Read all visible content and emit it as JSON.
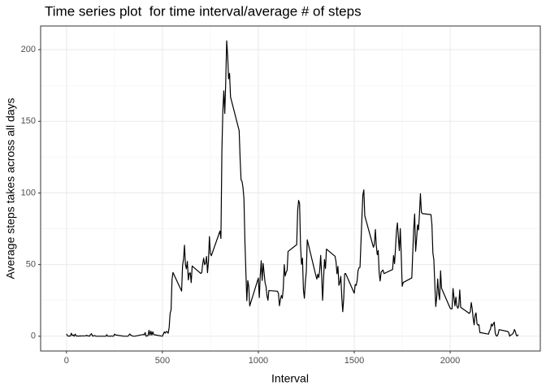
{
  "chart_data": {
    "type": "line",
    "title": "Time series plot  for time interval/average # of steps",
    "x_label": "Interval",
    "y_label": "Average steps takes across all days",
    "x": [
      0,
      5,
      10,
      15,
      20,
      25,
      30,
      35,
      40,
      45,
      50,
      55,
      100,
      105,
      110,
      115,
      120,
      125,
      130,
      135,
      140,
      145,
      150,
      155,
      200,
      205,
      210,
      215,
      220,
      225,
      230,
      235,
      240,
      245,
      250,
      255,
      300,
      310,
      320,
      330,
      335,
      340,
      345,
      350,
      355,
      400,
      405,
      410,
      415,
      420,
      425,
      430,
      435,
      440,
      445,
      450,
      455,
      500,
      505,
      510,
      515,
      520,
      525,
      530,
      535,
      540,
      545,
      550,
      555,
      600,
      605,
      610,
      615,
      620,
      625,
      630,
      635,
      640,
      645,
      650,
      655,
      700,
      705,
      710,
      715,
      720,
      725,
      730,
      735,
      740,
      745,
      750,
      755,
      800,
      805,
      810,
      815,
      820,
      825,
      830,
      835,
      840,
      845,
      850,
      855,
      900,
      905,
      910,
      915,
      920,
      925,
      930,
      935,
      940,
      945,
      950,
      955,
      1000,
      1005,
      1010,
      1015,
      1020,
      1025,
      1030,
      1035,
      1040,
      1045,
      1050,
      1055,
      1100,
      1105,
      1110,
      1115,
      1120,
      1125,
      1130,
      1135,
      1140,
      1145,
      1150,
      1155,
      1200,
      1205,
      1210,
      1215,
      1220,
      1225,
      1230,
      1235,
      1240,
      1245,
      1250,
      1255,
      1300,
      1305,
      1310,
      1315,
      1320,
      1325,
      1330,
      1335,
      1340,
      1345,
      1350,
      1355,
      1400,
      1405,
      1410,
      1415,
      1420,
      1425,
      1430,
      1435,
      1440,
      1445,
      1450,
      1455,
      1500,
      1505,
      1510,
      1515,
      1520,
      1525,
      1530,
      1535,
      1540,
      1545,
      1550,
      1555,
      1600,
      1605,
      1610,
      1615,
      1620,
      1625,
      1630,
      1635,
      1640,
      1645,
      1650,
      1655,
      1700,
      1705,
      1710,
      1715,
      1720,
      1725,
      1730,
      1735,
      1740,
      1745,
      1750,
      1755,
      1800,
      1805,
      1810,
      1815,
      1820,
      1825,
      1830,
      1835,
      1840,
      1845,
      1850,
      1855,
      1900,
      1905,
      1910,
      1915,
      1920,
      1925,
      1930,
      1935,
      1940,
      1945,
      1950,
      1955,
      2000,
      2005,
      2010,
      2015,
      2020,
      2025,
      2030,
      2035,
      2040,
      2045,
      2050,
      2055,
      2100,
      2105,
      2110,
      2115,
      2120,
      2125,
      2130,
      2135,
      2140,
      2145,
      2150,
      2155,
      2200,
      2205,
      2210,
      2215,
      2220,
      2225,
      2230,
      2235,
      2240,
      2245,
      2250,
      2255,
      2300,
      2305,
      2310,
      2315,
      2320,
      2325,
      2330,
      2335,
      2340,
      2345,
      2350,
      2355
    ],
    "series": [
      {
        "name": "steps",
        "color": "#000000",
        "values": [
          1.7,
          0.3,
          0.1,
          0.2,
          0.1,
          2.1,
          0.5,
          0.9,
          0,
          1.5,
          0.3,
          0.1,
          0.3,
          0.7,
          0.2,
          0.3,
          0,
          1.1,
          1.8,
          0.2,
          0.2,
          0.4,
          0.3,
          0,
          0,
          0,
          1.1,
          0,
          0,
          0.1,
          0,
          0.2,
          0,
          0,
          1.5,
          0.9,
          0,
          0,
          0,
          1.6,
          0.6,
          0.5,
          0.1,
          0,
          0,
          1.2,
          0.9,
          2.6,
          0,
          0.3,
          0.4,
          4.1,
          0.7,
          3.5,
          0.8,
          3.1,
          1.1,
          0,
          1.6,
          3.0,
          2.2,
          3.3,
          3.0,
          2.1,
          6.1,
          16.0,
          18.3,
          39.5,
          44.5,
          31.5,
          49.3,
          53.8,
          63.5,
          50.0,
          47.1,
          52.2,
          39.3,
          44.0,
          44.2,
          37.4,
          49.0,
          43.8,
          44.4,
          50.5,
          54.5,
          49.9,
          51.0,
          55.7,
          44.3,
          52.3,
          69.5,
          57.8,
          56.2,
          73.4,
          68.2,
          129.4,
          157.5,
          171.2,
          155.4,
          177.3,
          206.2,
          195.9,
          179.6,
          183.4,
          167.0,
          143.5,
          124.0,
          109.1,
          108.1,
          103.7,
          96.0,
          66.2,
          45.2,
          24.8,
          38.8,
          35.0,
          21.1,
          40.6,
          27.0,
          42.4,
          52.7,
          38.9,
          50.8,
          44.3,
          37.4,
          34.7,
          28.3,
          25.1,
          31.9,
          31.4,
          29.7,
          21.3,
          25.5,
          28.4,
          26.5,
          33.4,
          50.0,
          42.0,
          44.6,
          46.0,
          59.2,
          63.9,
          87.7,
          94.8,
          92.8,
          63.4,
          50.2,
          54.5,
          32.4,
          26.5,
          37.7,
          45.1,
          67.3,
          42.3,
          39.9,
          43.3,
          41.0,
          46.2,
          56.4,
          42.8,
          25.1,
          39.9,
          53.5,
          47.3,
          60.8,
          55.8,
          51.9,
          43.6,
          48.7,
          35.5,
          37.5,
          41.8,
          27.5,
          17.1,
          26.1,
          43.6,
          43.8,
          30.0,
          36.1,
          35.5,
          38.8,
          46.0,
          47.8,
          48.1,
          65.3,
          82.9,
          98.7,
          102.1,
          84.0,
          62.1,
          64.1,
          74.5,
          63.2,
          56.9,
          59.8,
          43.9,
          38.6,
          44.7,
          45.5,
          46.2,
          43.7,
          46.6,
          56.3,
          50.7,
          61.2,
          73.4,
          79.1,
          68.9,
          59.7,
          75.1,
          56.5,
          34.8,
          37.5,
          40.7,
          58.0,
          74.7,
          85.3,
          59.3,
          67.8,
          77.7,
          74.2,
          85.3,
          99.5,
          86.6,
          85.6,
          84.9,
          77.8,
          58.0,
          53.4,
          36.3,
          20.7,
          27.4,
          40.0,
          30.2,
          25.5,
          45.7,
          33.5,
          19.6,
          19.0,
          19.3,
          33.3,
          26.8,
          21.2,
          27.3,
          21.3,
          19.5,
          21.3,
          32.3,
          20.2,
          15.9,
          17.2,
          23.5,
          19.2,
          12.5,
          8.0,
          14.7,
          16.3,
          8.7,
          7.8,
          8.1,
          2.6,
          1.5,
          3.7,
          4.8,
          8.5,
          7.1,
          8.7,
          9.8,
          2.2,
          0.3,
          0.1,
          1.6,
          4.6,
          3.3,
          2.8,
          0,
          0.8,
          1.0,
          1.6,
          2.6,
          4.7,
          3.3,
          0.6,
          0.2,
          1.1
        ]
      }
    ],
    "xlim": [
      -135,
      2470
    ],
    "ylim": [
      -10.3,
      216.5
    ],
    "xticks": [
      0,
      500,
      1000,
      1500,
      2000
    ],
    "yticks": [
      0,
      50,
      100,
      150,
      200
    ],
    "grid": true
  }
}
